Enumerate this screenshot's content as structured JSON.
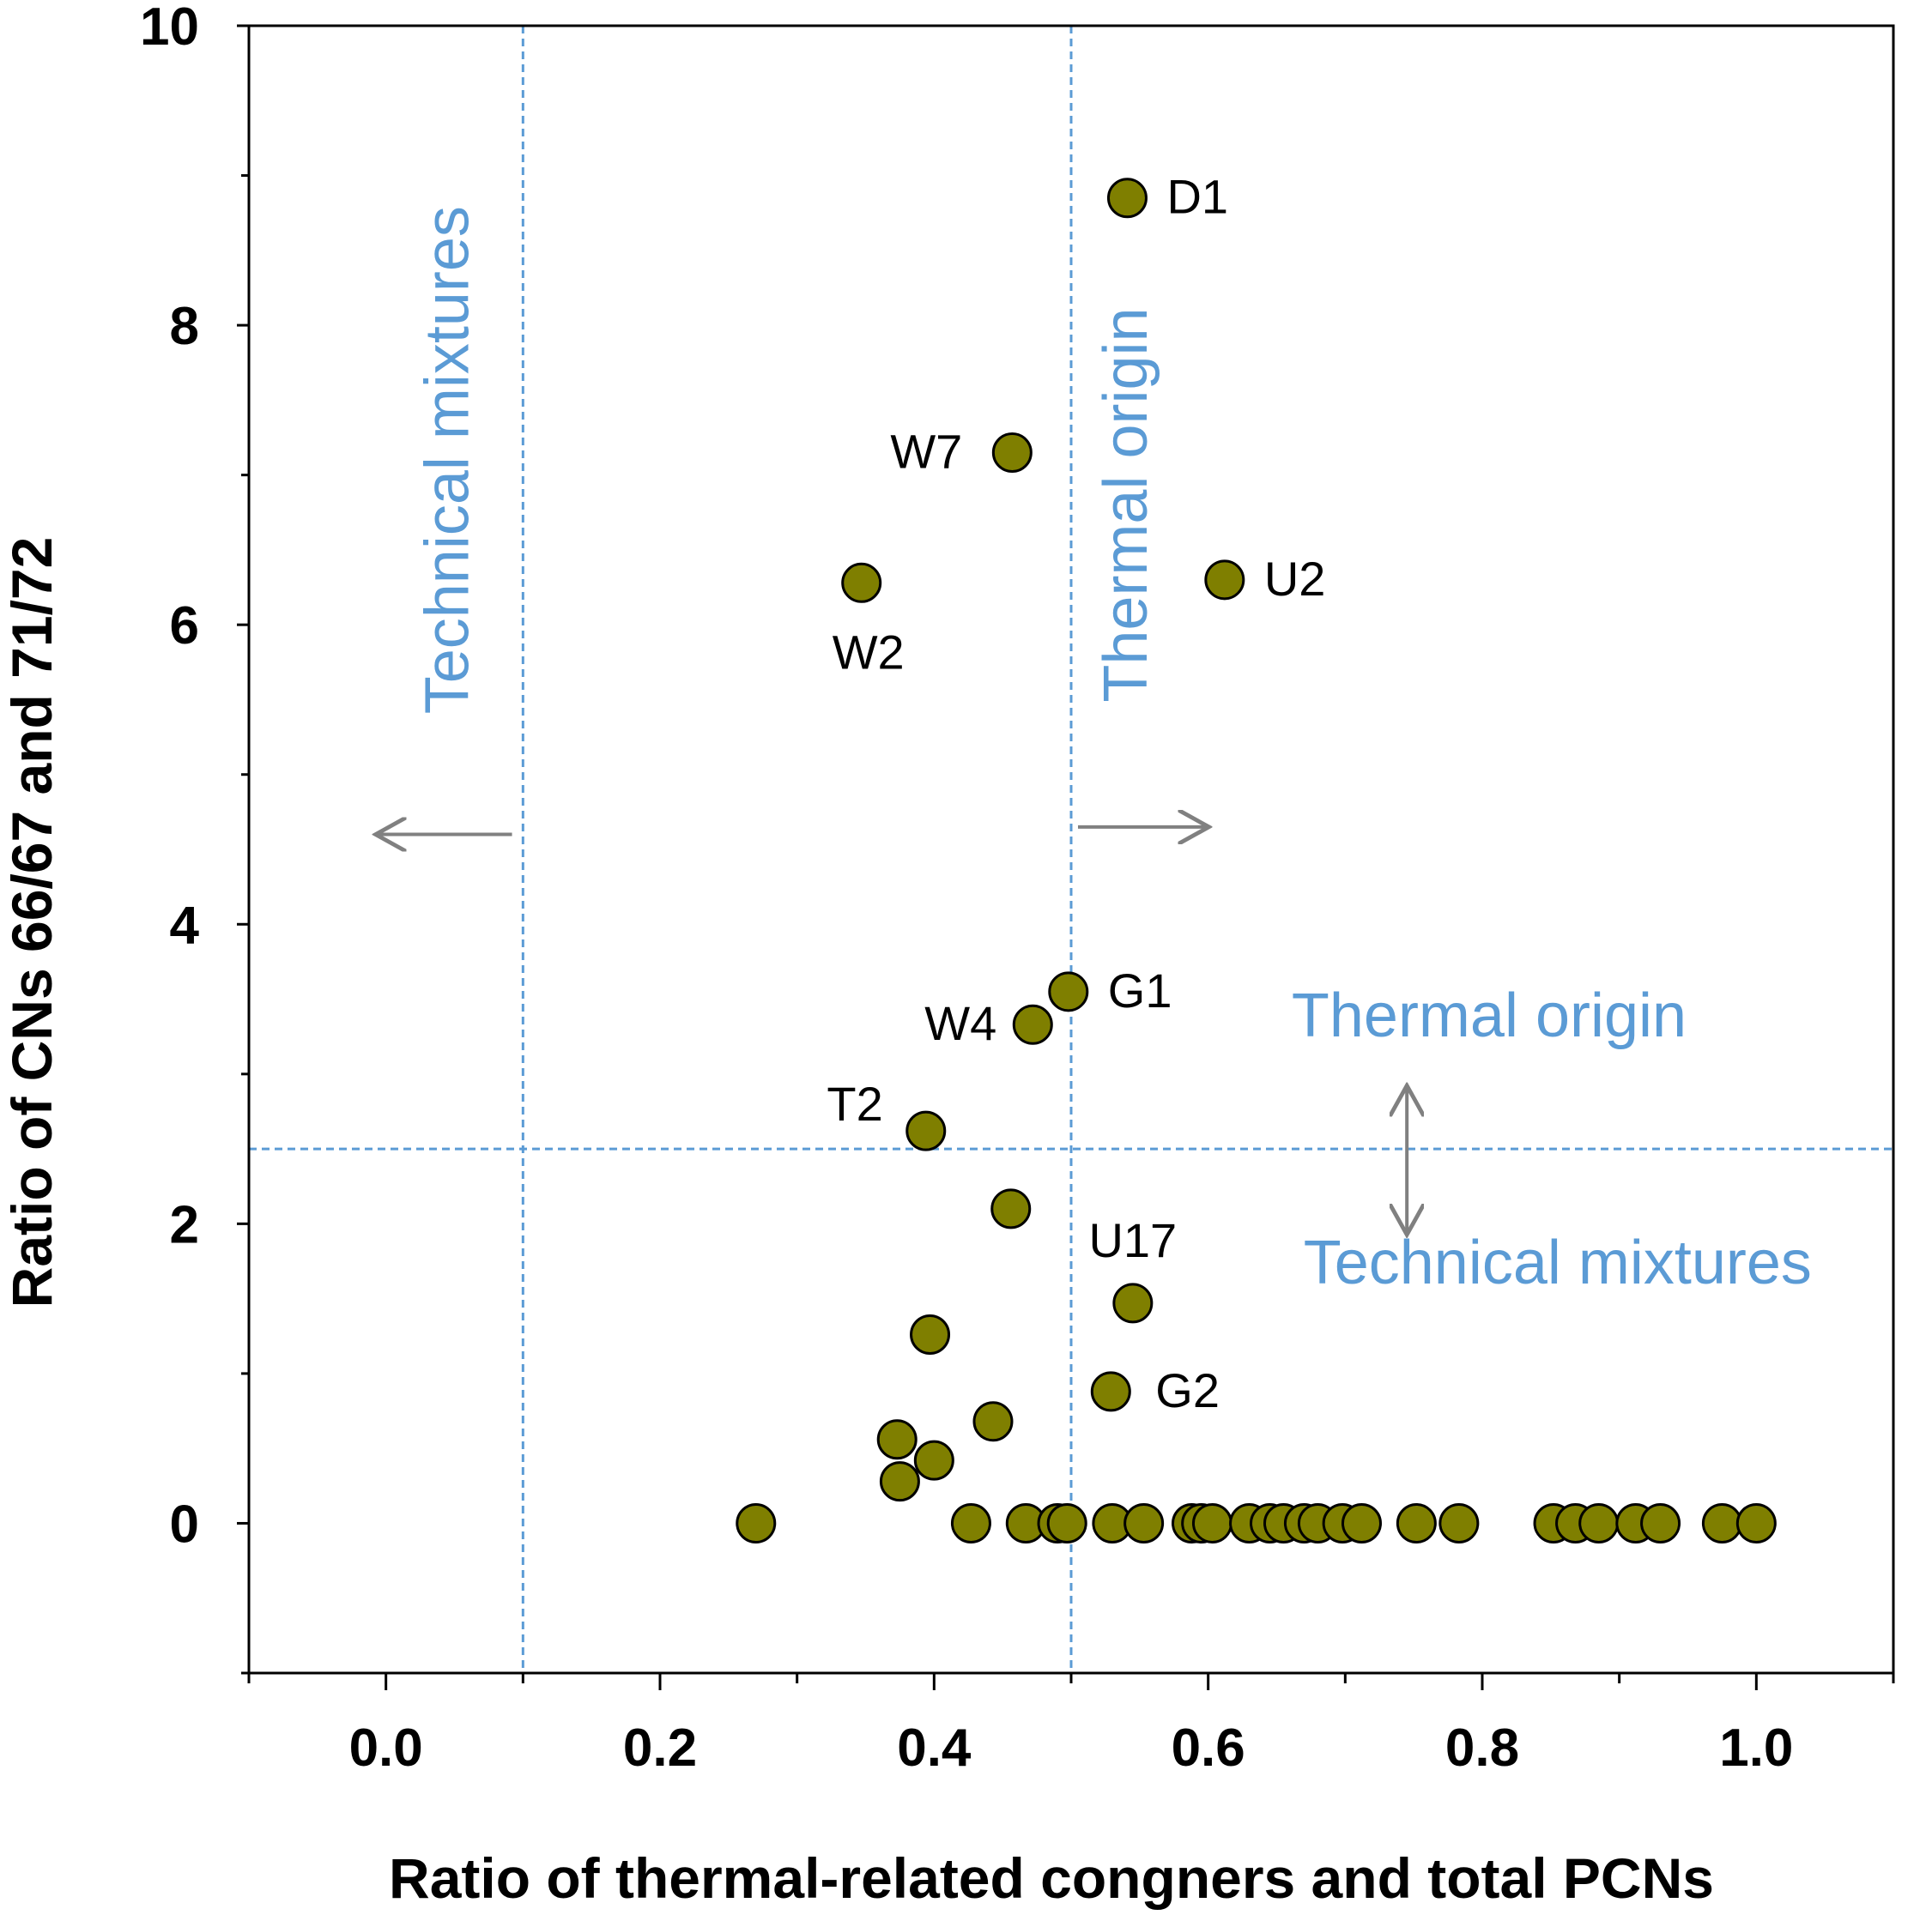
{
  "chart_data": {
    "type": "scatter",
    "title": "",
    "xlabel": "Ratio of thermal-related congners and total PCNs",
    "ylabel": "Ratio of CNs 66/67 and 71/72",
    "xlim": [
      -0.1,
      1.1
    ],
    "ylim": [
      -1,
      10
    ],
    "x_ticks": [
      {
        "value": 0.0,
        "label": "0.0"
      },
      {
        "value": 0.2,
        "label": "0.2"
      },
      {
        "value": 0.4,
        "label": "0.4"
      },
      {
        "value": 0.6,
        "label": "0.6"
      },
      {
        "value": 0.8,
        "label": "0.8"
      },
      {
        "value": 1.0,
        "label": "1.0"
      }
    ],
    "x_minor_ticks": [
      -0.1,
      0.1,
      0.3,
      0.5,
      0.7,
      0.9,
      1.1
    ],
    "y_ticks": [
      {
        "value": 0,
        "label": "0"
      },
      {
        "value": 2,
        "label": "2"
      },
      {
        "value": 4,
        "label": "4"
      },
      {
        "value": 6,
        "label": "6"
      },
      {
        "value": 8,
        "label": "8"
      },
      {
        "value": 10,
        "label": "10"
      }
    ],
    "y_minor_ticks": [
      -1,
      1,
      3,
      5,
      7,
      9
    ],
    "marker_color": "#7f7f00",
    "marker_edge_color": "#000000",
    "reference_line_color": "#5b9bd5",
    "arrow_color": "#808080",
    "reference_lines": [
      {
        "orientation": "vertical",
        "value": 0.1
      },
      {
        "orientation": "vertical",
        "value": 0.5
      },
      {
        "orientation": "horizontal",
        "value": 2.5
      }
    ],
    "region_labels": [
      {
        "text": "Technical mixtures",
        "x": 0.06,
        "y": 7.1,
        "rotation": -90
      },
      {
        "text": "Thermal origin",
        "x": 0.555,
        "y": 6.8,
        "rotation": -90
      },
      {
        "text": "Thermal origin",
        "x": 0.805,
        "y": 3.25,
        "rotation": 0
      },
      {
        "text": "Technical mixtures",
        "x": 0.855,
        "y": 1.6,
        "rotation": 0
      }
    ],
    "arrows": [
      {
        "x1": 0.092,
        "y1": 4.6,
        "x2": -0.005,
        "y2": 4.6
      },
      {
        "x1": 0.505,
        "y1": 4.65,
        "x2": 0.598,
        "y2": 4.65
      },
      {
        "x1": 0.745,
        "y1": 2.9,
        "x2": 0.745,
        "y2": 1.95
      }
    ],
    "points": [
      {
        "x": 0.541,
        "y": 8.85,
        "label": "D1"
      },
      {
        "x": 0.457,
        "y": 7.15,
        "label": "W7"
      },
      {
        "x": 0.347,
        "y": 6.28,
        "label": "W2"
      },
      {
        "x": 0.612,
        "y": 6.3,
        "label": "U2"
      },
      {
        "x": 0.498,
        "y": 3.55,
        "label": "G1"
      },
      {
        "x": 0.472,
        "y": 3.33,
        "label": "W4"
      },
      {
        "x": 0.394,
        "y": 2.62,
        "label": "T2"
      },
      {
        "x": 0.456,
        "y": 2.1,
        "label": ""
      },
      {
        "x": 0.545,
        "y": 1.47,
        "label": "U17"
      },
      {
        "x": 0.397,
        "y": 1.26,
        "label": ""
      },
      {
        "x": 0.529,
        "y": 0.88,
        "label": "G2"
      },
      {
        "x": 0.443,
        "y": 0.68,
        "label": ""
      },
      {
        "x": 0.373,
        "y": 0.56,
        "label": ""
      },
      {
        "x": 0.4,
        "y": 0.42,
        "label": ""
      },
      {
        "x": 0.375,
        "y": 0.28,
        "label": ""
      },
      {
        "x": 0.27,
        "y": 0.0,
        "label": ""
      },
      {
        "x": 0.427,
        "y": 0.0,
        "label": ""
      },
      {
        "x": 0.467,
        "y": 0.0,
        "label": ""
      },
      {
        "x": 0.49,
        "y": 0.0,
        "label": ""
      },
      {
        "x": 0.497,
        "y": 0.0,
        "label": ""
      },
      {
        "x": 0.53,
        "y": 0.0,
        "label": ""
      },
      {
        "x": 0.553,
        "y": 0.0,
        "label": ""
      },
      {
        "x": 0.588,
        "y": 0.0,
        "label": ""
      },
      {
        "x": 0.595,
        "y": 0.0,
        "label": ""
      },
      {
        "x": 0.603,
        "y": 0.0,
        "label": ""
      },
      {
        "x": 0.63,
        "y": 0.0,
        "label": ""
      },
      {
        "x": 0.645,
        "y": 0.0,
        "label": ""
      },
      {
        "x": 0.655,
        "y": 0.0,
        "label": ""
      },
      {
        "x": 0.67,
        "y": 0.0,
        "label": ""
      },
      {
        "x": 0.68,
        "y": 0.0,
        "label": ""
      },
      {
        "x": 0.698,
        "y": 0.0,
        "label": ""
      },
      {
        "x": 0.712,
        "y": 0.0,
        "label": ""
      },
      {
        "x": 0.752,
        "y": 0.0,
        "label": ""
      },
      {
        "x": 0.783,
        "y": 0.0,
        "label": ""
      },
      {
        "x": 0.852,
        "y": 0.0,
        "label": ""
      },
      {
        "x": 0.868,
        "y": 0.0,
        "label": ""
      },
      {
        "x": 0.885,
        "y": 0.0,
        "label": ""
      },
      {
        "x": 0.912,
        "y": 0.0,
        "label": ""
      },
      {
        "x": 0.93,
        "y": 0.0,
        "label": ""
      },
      {
        "x": 0.975,
        "y": 0.0,
        "label": ""
      },
      {
        "x": 1.0,
        "y": 0.0,
        "label": ""
      }
    ]
  }
}
